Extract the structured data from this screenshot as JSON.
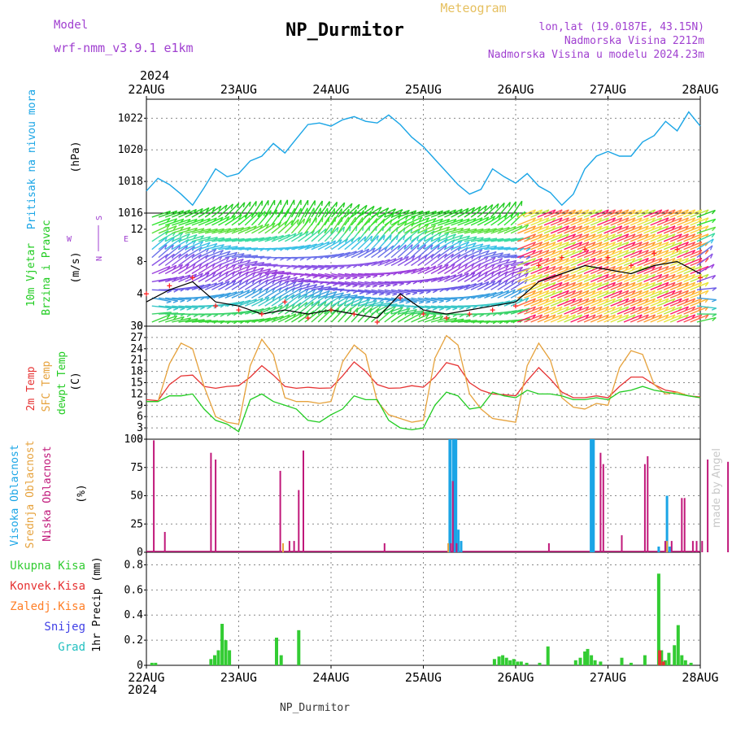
{
  "header": {
    "model_label": "Model",
    "model_name": "wrf-nmm_v3.9.1 e1km",
    "location_title": "NP_Durmitor",
    "product": "Meteogram",
    "coords": "lon,lat (19.0187E, 43.15N)",
    "elevation": "Nadmorska Visina 2212m",
    "model_elevation": "Nadmorska Visina u modelu 2024.23m",
    "footer_location": "NP_Durmitor",
    "credit": "made by Angel"
  },
  "colors": {
    "pressure": "#1aa5e6",
    "temp2m": "#e63333",
    "sfc_temp": "#e6a23c",
    "dewpoint": "#22cc22",
    "high_cloud": "#1aa5e6",
    "mid_cloud": "#e6a23c",
    "low_cloud": "#c0187a",
    "total_precip": "#33cc33",
    "conv_precip": "#e63333",
    "freezing_precip": "#ff7f27",
    "snow": "#4040e6",
    "hail": "#22c0c0",
    "header_purple": "#a040d0",
    "grid": "#888888"
  },
  "time_axis": {
    "year": "2024",
    "ticks": [
      "22AUG",
      "23AUG",
      "24AUG",
      "25AUG",
      "26AUG",
      "27AUG",
      "28AUG"
    ]
  },
  "chart_data": [
    {
      "type": "line",
      "panel": "pressure",
      "ylabel": "Pritisak na nivou mora",
      "unit": "(hPa)",
      "ylim": [
        1016,
        1023.2
      ],
      "yticks": [
        "1016",
        "1018",
        "1020",
        "1022"
      ],
      "x_days": [
        0,
        0.125,
        0.25,
        0.375,
        0.5,
        0.625,
        0.75,
        0.875,
        1.0,
        1.125,
        1.25,
        1.375,
        1.5,
        1.625,
        1.75,
        1.875,
        2.0,
        2.125,
        2.25,
        2.375,
        2.5,
        2.625,
        2.75,
        2.875,
        3.0,
        3.125,
        3.25,
        3.375,
        3.5,
        3.625,
        3.75,
        3.875,
        4.0,
        4.125,
        4.25,
        4.375,
        4.5,
        4.625,
        4.75,
        4.875,
        5.0,
        5.125,
        5.25,
        5.375,
        5.5,
        5.625,
        5.75,
        5.875,
        6.0
      ],
      "values": [
        1017.4,
        1018.2,
        1017.8,
        1017.2,
        1016.5,
        1017.6,
        1018.8,
        1018.3,
        1018.5,
        1019.3,
        1019.6,
        1020.4,
        1019.8,
        1020.7,
        1021.6,
        1021.7,
        1021.5,
        1021.9,
        1022.1,
        1021.8,
        1021.7,
        1022.2,
        1021.6,
        1020.8,
        1020.2,
        1019.4,
        1018.6,
        1017.8,
        1017.2,
        1017.5,
        1018.8,
        1018.3,
        1017.9,
        1018.5,
        1017.7,
        1017.3,
        1016.5,
        1017.2,
        1018.8,
        1019.6,
        1019.9,
        1019.6,
        1019.6,
        1020.5,
        1020.9,
        1021.8,
        1021.2,
        1022.4,
        1021.5
      ]
    },
    {
      "type": "vector",
      "panel": "wind",
      "ylabel_lines": [
        "10m Vjetar",
        "Brzina i Pravac"
      ],
      "unit": "(m/s)",
      "direction_key": [
        "N",
        "E",
        "S",
        "W"
      ],
      "ylim": [
        0,
        14
      ],
      "yticks": [
        "0",
        "4",
        "8",
        "12"
      ],
      "x_days": [
        0,
        0.25,
        0.5,
        0.75,
        1.0,
        1.25,
        1.5,
        1.75,
        2.0,
        2.25,
        2.5,
        2.75,
        3.0,
        3.25,
        3.5,
        3.75,
        4.0,
        4.25,
        4.5,
        4.75,
        5.0,
        5.25,
        5.5,
        5.75,
        6.0
      ],
      "speed": [
        3.0,
        4.5,
        5.5,
        3.0,
        2.5,
        1.5,
        2.0,
        1.5,
        2.0,
        1.5,
        1.0,
        4.0,
        2.0,
        1.5,
        2.0,
        2.5,
        3.0,
        5.5,
        6.5,
        7.5,
        7.0,
        6.5,
        7.5,
        8.0,
        6.5
      ],
      "gust": [
        4.0,
        5.0,
        6.0,
        2.5,
        2.0,
        1.5,
        3.0,
        1.0,
        2.0,
        1.5,
        0.5,
        3.5,
        1.5,
        1.0,
        1.5,
        2.0,
        2.5,
        7.5,
        8.5,
        9.5,
        8.5,
        7.5,
        9.0,
        9.5,
        6.0
      ],
      "rows": [
        {
          "h": 0.5,
          "c": "#39d639",
          "a": 25
        },
        {
          "h": 1.5,
          "c": "#3bd36a",
          "a": 20
        },
        {
          "h": 2.5,
          "c": "#3ac7c7",
          "a": 15
        },
        {
          "h": 3.5,
          "c": "#3a9fe0",
          "a": 10
        },
        {
          "h": 4.5,
          "c": "#6a5ae6",
          "a": 10
        },
        {
          "h": 5.5,
          "c": "#8a45e0",
          "a": 10
        },
        {
          "h": 6.5,
          "c": "#9b40dd",
          "a": 10
        },
        {
          "h": 7.5,
          "c": "#8a55e6",
          "a": 15
        },
        {
          "h": 8.5,
          "c": "#6a70ea",
          "a": 20
        },
        {
          "h": 9.5,
          "c": "#3ac0e6",
          "a": 25
        },
        {
          "h": 10.5,
          "c": "#3adca0",
          "a": 30
        },
        {
          "h": 11.5,
          "c": "#5ae03a",
          "a": 35
        },
        {
          "h": 12.5,
          "c": "#2ee62e",
          "a": 40
        },
        {
          "h": 13.5,
          "c": "#22cc22",
          "a": 40
        }
      ],
      "warm_colors": [
        "#ff1a66",
        "#ff4a55",
        "#ff6e40",
        "#ff9a30",
        "#ffb833",
        "#ffd040",
        "#e6e63a",
        "#b8e63a"
      ]
    },
    {
      "type": "line",
      "panel": "temperature",
      "ylabel_lines": [
        "2m Temp",
        "SFC Temp",
        "dewpt Temp"
      ],
      "unit": "(C)",
      "ylim": [
        0,
        30
      ],
      "yticks": [
        "0",
        "3",
        "6",
        "9",
        "12",
        "15",
        "18",
        "21",
        "24",
        "27",
        "30"
      ],
      "x_days": [
        0,
        0.125,
        0.25,
        0.375,
        0.5,
        0.625,
        0.75,
        0.875,
        1.0,
        1.125,
        1.25,
        1.375,
        1.5,
        1.625,
        1.75,
        1.875,
        2.0,
        2.125,
        2.25,
        2.375,
        2.5,
        2.625,
        2.75,
        2.875,
        3.0,
        3.125,
        3.25,
        3.375,
        3.5,
        3.625,
        3.75,
        3.875,
        4.0,
        4.125,
        4.25,
        4.375,
        4.5,
        4.625,
        4.75,
        4.875,
        5.0,
        5.125,
        5.25,
        5.375,
        5.5,
        5.625,
        5.75,
        5.875,
        6.0
      ],
      "series": [
        {
          "name": "2m Temp",
          "color": "#e63333",
          "values": [
            10.5,
            10.2,
            14.5,
            16.8,
            17.0,
            14.0,
            13.5,
            14.0,
            14.2,
            16.5,
            19.5,
            17.0,
            14.0,
            13.5,
            13.8,
            13.5,
            13.6,
            16.8,
            20.5,
            18.0,
            14.5,
            13.5,
            13.6,
            14.2,
            13.8,
            16.5,
            20.3,
            19.5,
            15.0,
            13.0,
            12.0,
            11.8,
            11.5,
            15.5,
            19.0,
            16.0,
            12.5,
            11.0,
            11.0,
            11.5,
            11.0,
            14.0,
            16.5,
            16.5,
            14.5,
            13.0,
            12.5,
            11.5,
            11.2
          ]
        },
        {
          "name": "SFC Temp",
          "color": "#e6a23c",
          "values": [
            10.0,
            10.0,
            20.0,
            25.5,
            24.0,
            14.0,
            6.0,
            4.5,
            4.0,
            19.5,
            26.5,
            22.5,
            11.0,
            10.0,
            10.0,
            9.5,
            10.0,
            20.5,
            25.0,
            22.5,
            10.0,
            6.5,
            5.5,
            4.5,
            5.0,
            21.5,
            27.5,
            25.0,
            12.0,
            8.0,
            5.5,
            5.0,
            4.5,
            19.5,
            25.5,
            21.0,
            11.0,
            8.5,
            8.0,
            9.5,
            9.0,
            19.0,
            23.5,
            22.5,
            14.5,
            12.0,
            12.5,
            11.5,
            11.0
          ]
        },
        {
          "name": "dewpt Temp",
          "color": "#22cc22",
          "values": [
            10.0,
            10.0,
            11.5,
            11.5,
            12.0,
            8.0,
            5.0,
            4.0,
            2.0,
            10.5,
            12.0,
            10.0,
            9.0,
            8.0,
            5.0,
            4.5,
            6.5,
            8.0,
            11.5,
            10.5,
            10.5,
            5.0,
            3.0,
            2.5,
            3.0,
            9.0,
            12.5,
            11.5,
            8.0,
            8.5,
            12.5,
            11.5,
            11.0,
            13.0,
            12.0,
            12.0,
            11.5,
            10.5,
            10.5,
            11.0,
            10.5,
            12.5,
            13.0,
            14.0,
            13.0,
            12.5,
            12.0,
            11.5,
            11.0
          ]
        }
      ]
    },
    {
      "type": "bar",
      "panel": "clouds",
      "ylabel_lines": [
        "Visoka Oblacnost",
        "Srednja Oblacnost",
        "Niska Oblacnost"
      ],
      "unit": "(%)",
      "ylim": [
        0,
        100
      ],
      "yticks": [
        "0",
        "25",
        "50",
        "75",
        "100"
      ],
      "series": [
        {
          "name": "Visoka Oblacnost",
          "color": "#1aa5e6",
          "points": [
            [
              3.29,
              100
            ],
            [
              3.33,
              100
            ],
            [
              3.35,
              100
            ],
            [
              3.38,
              20
            ],
            [
              3.41,
              10
            ],
            [
              4.82,
              100
            ],
            [
              4.84,
              100
            ],
            [
              5.55,
              5
            ],
            [
              5.64,
              50
            ],
            [
              5.67,
              5
            ]
          ]
        },
        {
          "name": "Srednja Oblacnost",
          "color": "#e6a23c",
          "points": [
            [
              1.48,
              8
            ],
            [
              3.27,
              8
            ],
            [
              5.64,
              10
            ]
          ]
        },
        {
          "name": "Niska Oblacnost",
          "color": "#c0187a",
          "points": [
            [
              0.08,
              99
            ],
            [
              0.2,
              18
            ],
            [
              0.7,
              88
            ],
            [
              0.75,
              82
            ],
            [
              1.45,
              72
            ],
            [
              1.55,
              10
            ],
            [
              1.6,
              10
            ],
            [
              1.65,
              55
            ],
            [
              1.7,
              90
            ],
            [
              2.58,
              8
            ],
            [
              3.3,
              8
            ],
            [
              3.32,
              63
            ],
            [
              3.36,
              8
            ],
            [
              4.36,
              8
            ],
            [
              4.92,
              88
            ],
            [
              4.95,
              78
            ],
            [
              5.15,
              15
            ],
            [
              5.4,
              78
            ],
            [
              5.43,
              85
            ],
            [
              5.62,
              10
            ],
            [
              5.69,
              10
            ],
            [
              5.8,
              48
            ],
            [
              5.83,
              48
            ],
            [
              5.92,
              10
            ],
            [
              5.96,
              10
            ],
            [
              6.02,
              10
            ],
            [
              6.08,
              82
            ],
            [
              6.3,
              80
            ],
            [
              6.38,
              10
            ],
            [
              6.45,
              10
            ],
            [
              6.5,
              55
            ],
            [
              6.55,
              30
            ],
            [
              6.6,
              98
            ],
            [
              6.66,
              52
            ],
            [
              6.7,
              80
            ],
            [
              6.8,
              80
            ],
            [
              6.85,
              5
            ]
          ]
        }
      ]
    },
    {
      "type": "bar",
      "panel": "precipitation",
      "legend": [
        "Ukupna Kisa",
        "Konvek.Kisa",
        "Zaledj.Kisa",
        "Snijeg",
        "Grad"
      ],
      "ylabel": "1hr Precip (mm)",
      "ylim": [
        0,
        0.9
      ],
      "yticks": [
        "0",
        "0.2",
        "0.4",
        "0.6",
        "0.8"
      ],
      "series": [
        {
          "name": "Ukupna Kisa",
          "color": "#33cc33",
          "points": [
            [
              0.06,
              0.02
            ],
            [
              0.1,
              0.02
            ],
            [
              0.7,
              0.05
            ],
            [
              0.74,
              0.08
            ],
            [
              0.78,
              0.12
            ],
            [
              0.82,
              0.33
            ],
            [
              0.86,
              0.2
            ],
            [
              0.9,
              0.12
            ],
            [
              1.41,
              0.22
            ],
            [
              1.46,
              0.08
            ],
            [
              1.65,
              0.28
            ],
            [
              3.77,
              0.05
            ],
            [
              3.82,
              0.07
            ],
            [
              3.86,
              0.08
            ],
            [
              3.9,
              0.06
            ],
            [
              3.94,
              0.04
            ],
            [
              3.98,
              0.05
            ],
            [
              4.02,
              0.03
            ],
            [
              4.06,
              0.03
            ],
            [
              4.12,
              0.02
            ],
            [
              4.26,
              0.02
            ],
            [
              4.35,
              0.15
            ],
            [
              4.65,
              0.04
            ],
            [
              4.7,
              0.06
            ],
            [
              4.75,
              0.11
            ],
            [
              4.78,
              0.13
            ],
            [
              4.82,
              0.08
            ],
            [
              4.86,
              0.04
            ],
            [
              4.92,
              0.03
            ],
            [
              5.15,
              0.06
            ],
            [
              5.25,
              0.02
            ],
            [
              5.4,
              0.08
            ],
            [
              5.55,
              0.73
            ],
            [
              5.58,
              0.12
            ],
            [
              5.62,
              0.04
            ],
            [
              5.66,
              0.1
            ],
            [
              5.72,
              0.16
            ],
            [
              5.76,
              0.32
            ],
            [
              5.8,
              0.08
            ],
            [
              5.84,
              0.04
            ],
            [
              5.9,
              0.02
            ]
          ]
        },
        {
          "name": "Konvek.Kisa",
          "color": "#e63333",
          "points": [
            [
              5.56,
              0.12
            ],
            [
              5.6,
              0.03
            ]
          ]
        }
      ]
    }
  ]
}
